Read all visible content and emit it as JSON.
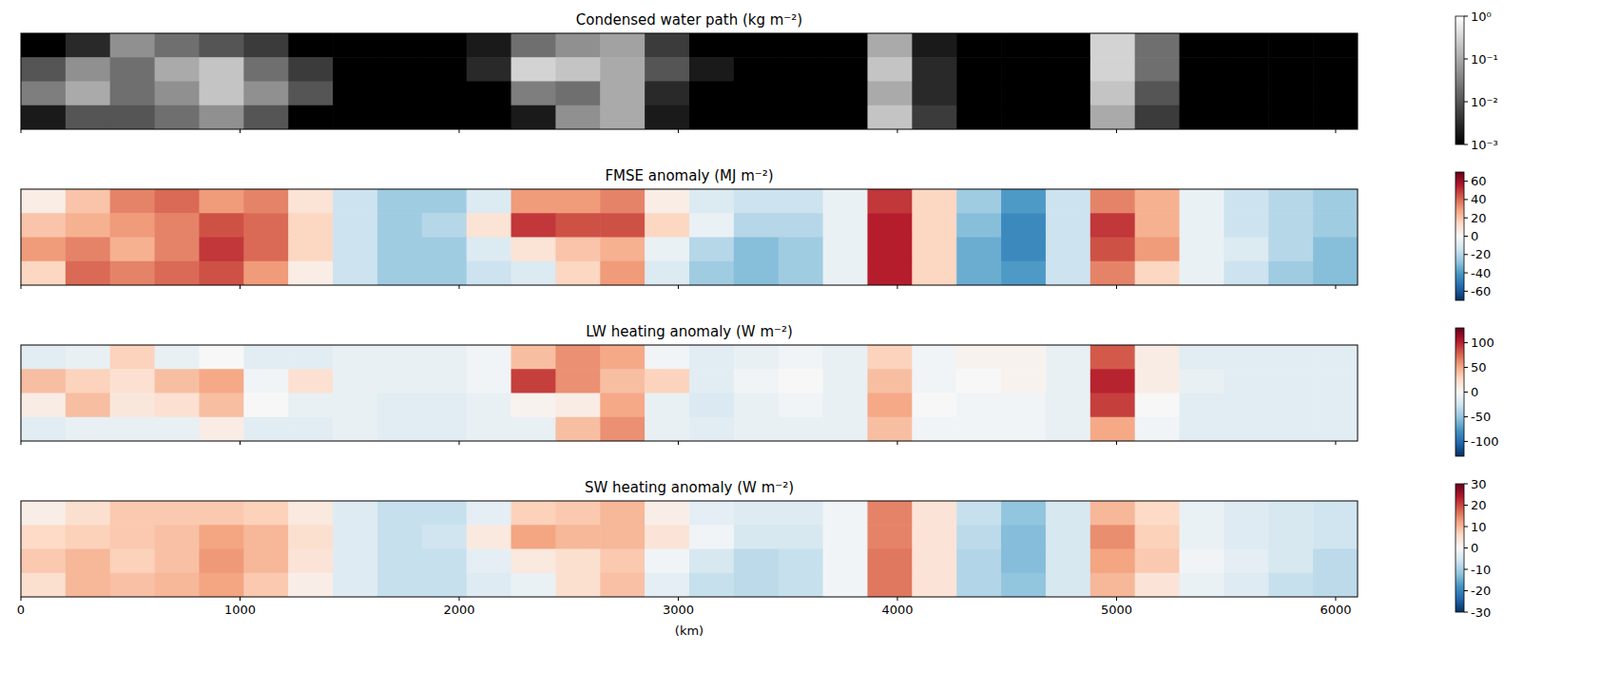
{
  "chart_data": [
    {
      "type": "heatmap",
      "title": "Condensed water path (kg m⁻²)",
      "color": "Greys",
      "log": true,
      "xlim": [
        0,
        6100
      ],
      "xticks": [
        0,
        1000,
        2000,
        3000,
        4000,
        5000,
        6000
      ],
      "tick_labels": false,
      "colorbar_range": [
        0.001,
        1
      ],
      "colorbar_ticks": [
        {
          "value": 1,
          "label": "10⁰"
        },
        {
          "value": 0.1,
          "label": "10⁻¹"
        },
        {
          "value": 0.01,
          "label": "10⁻²"
        },
        {
          "value": 0.001,
          "label": "10⁻³"
        }
      ],
      "cells": [
        [
          0.001,
          0.003,
          0.05,
          0.02,
          0.01,
          0.005,
          0.001,
          0.001,
          0.001,
          0.001,
          0.002,
          0.02,
          0.05,
          0.08,
          0.005,
          0.001,
          0.001,
          0.001,
          0.001,
          0.1,
          0.002,
          0.001,
          0.001,
          0.001,
          0.3,
          0.02,
          0.001,
          0.001,
          0.001,
          0.001
        ],
        [
          0.01,
          0.05,
          0.02,
          0.1,
          0.2,
          0.02,
          0.005,
          0.001,
          0.001,
          0.001,
          0.003,
          0.3,
          0.2,
          0.1,
          0.01,
          0.002,
          0.001,
          0.001,
          0.001,
          0.2,
          0.003,
          0.001,
          0.001,
          0.001,
          0.3,
          0.02,
          0.001,
          0.001,
          0.001,
          0.001
        ],
        [
          0.03,
          0.1,
          0.02,
          0.05,
          0.2,
          0.05,
          0.01,
          0.001,
          0.001,
          0.001,
          0.001,
          0.03,
          0.02,
          0.1,
          0.003,
          0.001,
          0.001,
          0.001,
          0.001,
          0.1,
          0.003,
          0.001,
          0.001,
          0.001,
          0.2,
          0.01,
          0.001,
          0.001,
          0.001,
          0.001
        ],
        [
          0.002,
          0.01,
          0.01,
          0.02,
          0.05,
          0.01,
          0.001,
          0.001,
          0.001,
          0.001,
          0.001,
          0.002,
          0.05,
          0.1,
          0.002,
          0.001,
          0.001,
          0.001,
          0.001,
          0.2,
          0.005,
          0.001,
          0.001,
          0.001,
          0.1,
          0.005,
          0.001,
          0.001,
          0.001,
          0.001
        ]
      ]
    },
    {
      "type": "heatmap",
      "title": "FMSE anomaly (MJ m⁻²)",
      "color": "RdBu_r",
      "xlim": [
        0,
        6100
      ],
      "xticks": [
        0,
        1000,
        2000,
        3000,
        4000,
        5000,
        6000
      ],
      "tick_labels": false,
      "colorbar_range": [
        -70,
        70
      ],
      "colorbar_ticks": [
        60,
        40,
        20,
        0,
        -20,
        -40,
        -60
      ],
      "cells": [
        [
          5,
          20,
          35,
          40,
          30,
          35,
          10,
          -15,
          -25,
          -25,
          -10,
          30,
          30,
          35,
          5,
          -10,
          -15,
          -15,
          -5,
          50,
          15,
          -25,
          -40,
          -15,
          35,
          25,
          -5,
          -15,
          -20,
          -25
        ],
        [
          20,
          25,
          30,
          35,
          45,
          40,
          15,
          -15,
          -25,
          -20,
          10,
          50,
          45,
          45,
          15,
          -5,
          -20,
          -20,
          -5,
          55,
          15,
          -30,
          -45,
          -15,
          50,
          25,
          -5,
          -15,
          -20,
          -25
        ],
        [
          30,
          35,
          25,
          35,
          50,
          40,
          15,
          -15,
          -25,
          -25,
          -10,
          10,
          20,
          25,
          -5,
          -20,
          -30,
          -25,
          -5,
          55,
          15,
          -35,
          -45,
          -15,
          45,
          30,
          -5,
          -10,
          -20,
          -30
        ],
        [
          15,
          40,
          35,
          40,
          45,
          30,
          5,
          -15,
          -25,
          -25,
          -15,
          -10,
          15,
          30,
          -10,
          -25,
          -30,
          -25,
          -5,
          55,
          15,
          -35,
          -40,
          -15,
          35,
          15,
          -5,
          -15,
          -25,
          -30
        ]
      ]
    },
    {
      "type": "heatmap",
      "title": "LW heating anomaly (W m⁻²)",
      "color": "RdBu_r",
      "xlim": [
        0,
        6100
      ],
      "xticks": [
        0,
        1000,
        2000,
        3000,
        4000,
        5000,
        6000
      ],
      "tick_labels": false,
      "colorbar_range": [
        -130,
        130
      ],
      "colorbar_ticks": [
        100,
        50,
        0,
        -50,
        -100
      ],
      "cells": [
        [
          -15,
          -10,
          30,
          -10,
          0,
          -15,
          -15,
          -10,
          -10,
          -10,
          -5,
          40,
          60,
          50,
          -5,
          -15,
          -10,
          -5,
          -10,
          30,
          -5,
          5,
          5,
          -10,
          80,
          10,
          -15,
          -15,
          -15,
          -15
        ],
        [
          40,
          30,
          20,
          40,
          50,
          -5,
          20,
          -10,
          -10,
          -10,
          -5,
          90,
          60,
          40,
          30,
          -15,
          -5,
          0,
          -10,
          40,
          -5,
          0,
          5,
          -10,
          100,
          10,
          -10,
          -15,
          -15,
          -15
        ],
        [
          10,
          40,
          15,
          20,
          40,
          0,
          -10,
          -10,
          -15,
          -15,
          -10,
          5,
          10,
          50,
          -10,
          -20,
          -10,
          -5,
          -10,
          50,
          0,
          -5,
          -5,
          -10,
          90,
          0,
          -15,
          -15,
          -15,
          -15
        ],
        [
          -15,
          -10,
          -10,
          -10,
          10,
          -15,
          -15,
          -10,
          -15,
          -15,
          -10,
          -10,
          40,
          60,
          -10,
          -15,
          -10,
          -10,
          -10,
          40,
          -5,
          -5,
          -5,
          -10,
          50,
          -5,
          -15,
          -15,
          -15,
          -15
        ]
      ]
    },
    {
      "type": "heatmap",
      "title": "SW heating anomaly (W m⁻²)",
      "color": "RdBu_r",
      "xlim": [
        0,
        6100
      ],
      "xticks": [
        0,
        1000,
        2000,
        3000,
        4000,
        5000,
        6000
      ],
      "tick_labels": "x",
      "xlabel": "(km)",
      "colorbar_range": [
        -30,
        30
      ],
      "colorbar_ticks": [
        30,
        20,
        10,
        0,
        -10,
        -20,
        -30
      ],
      "cells": [
        [
          2,
          5,
          8,
          8,
          8,
          7,
          3,
          -4,
          -7,
          -7,
          -3,
          7,
          8,
          10,
          2,
          -3,
          -4,
          -4,
          -1,
          15,
          4,
          -7,
          -12,
          -5,
          10,
          6,
          -2,
          -4,
          -5,
          -6
        ],
        [
          6,
          7,
          8,
          9,
          12,
          10,
          5,
          -4,
          -7,
          -6,
          3,
          12,
          10,
          10,
          4,
          -1,
          -5,
          -5,
          -1,
          15,
          4,
          -8,
          -13,
          -5,
          14,
          7,
          -2,
          -4,
          -5,
          -6
        ],
        [
          8,
          10,
          7,
          9,
          13,
          10,
          4,
          -4,
          -7,
          -7,
          -3,
          3,
          5,
          8,
          -1,
          -5,
          -8,
          -7,
          -1,
          16,
          4,
          -9,
          -13,
          -5,
          12,
          8,
          -1,
          -3,
          -5,
          -8
        ],
        [
          5,
          10,
          9,
          10,
          12,
          8,
          2,
          -4,
          -7,
          -7,
          -4,
          -2,
          5,
          9,
          -3,
          -7,
          -8,
          -7,
          -1,
          16,
          4,
          -9,
          -12,
          -5,
          10,
          4,
          -2,
          -4,
          -7,
          -8
        ]
      ]
    }
  ]
}
